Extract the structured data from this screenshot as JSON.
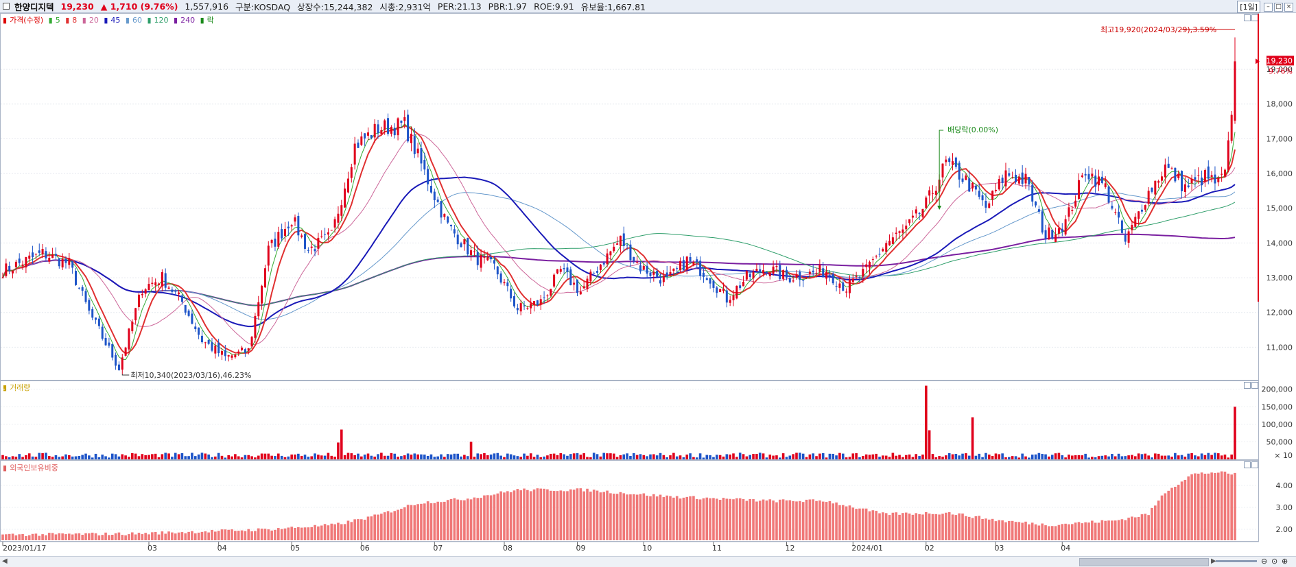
{
  "header": {
    "stock_name": "한양디지텍",
    "price": "19,230",
    "change": "▲ 1,710 (9.76%)",
    "volume": "1,557,916",
    "market": "구분:KOSDAQ",
    "shares": "상장수:15,244,382",
    "mcap": "시총:2,931억",
    "per": "PER:21.13",
    "pbr": "PBR:1.97",
    "roe": "ROE:9.91",
    "float_ratio": "유보율:1,667.81",
    "period_button": "[1일]"
  },
  "legend": {
    "price_label": "가격(수정)",
    "ma": [
      {
        "label": "5",
        "color": "#33aa33"
      },
      {
        "label": "8",
        "color": "#e03030"
      },
      {
        "label": "20",
        "color": "#cc6699"
      },
      {
        "label": "45",
        "color": "#1a1ab8"
      },
      {
        "label": "60",
        "color": "#6699cc"
      },
      {
        "label": "120",
        "color": "#2e9e6a"
      },
      {
        "label": "240",
        "color": "#7a1fa0"
      }
    ],
    "ex_label": "락",
    "volume_label": "거래량",
    "foreign_label": "외국인보유비중"
  },
  "annotations": {
    "high": "최고19,920(2024/03/29),3.59%",
    "low": "최저10,340(2023/03/16),46.23%",
    "dividend": "배당락(0.00%)",
    "last_price": "19,230",
    "last_pct": "9.76%"
  },
  "chart_data": [
    {
      "type": "candlestick",
      "title": "한양디지텍",
      "x_start": "2023/01/17",
      "x_ticks": [
        "2023/01/17",
        "03",
        "04",
        "05",
        "06",
        "07",
        "08",
        "09",
        "10",
        "11",
        "12",
        "2024/01",
        "02",
        "03",
        "04"
      ],
      "y_ticks": [
        "11,000",
        "12,000",
        "13,000",
        "14,000",
        "15,000",
        "16,000",
        "17,000",
        "18,000",
        "19,000"
      ],
      "ylim": [
        10100,
        20600
      ],
      "anchors": [
        [
          0,
          13200
        ],
        [
          12,
          13700
        ],
        [
          20,
          13400
        ],
        [
          26,
          12000
        ],
        [
          35,
          10400
        ],
        [
          42,
          12700
        ],
        [
          48,
          13000
        ],
        [
          54,
          12300
        ],
        [
          60,
          11200
        ],
        [
          67,
          10700
        ],
        [
          74,
          10900
        ],
        [
          80,
          13800
        ],
        [
          87,
          14700
        ],
        [
          92,
          13800
        ],
        [
          99,
          14200
        ],
        [
          106,
          16800
        ],
        [
          113,
          17300
        ],
        [
          121,
          17400
        ],
        [
          128,
          15800
        ],
        [
          134,
          14500
        ],
        [
          142,
          13600
        ],
        [
          148,
          13300
        ],
        [
          155,
          12100
        ],
        [
          162,
          12300
        ],
        [
          168,
          13200
        ],
        [
          174,
          12600
        ],
        [
          180,
          13400
        ],
        [
          186,
          14100
        ],
        [
          192,
          13300
        ],
        [
          200,
          12900
        ],
        [
          206,
          13500
        ],
        [
          212,
          13100
        ],
        [
          218,
          12400
        ],
        [
          224,
          13000
        ],
        [
          230,
          13300
        ],
        [
          236,
          13000
        ],
        [
          242,
          13100
        ],
        [
          248,
          13200
        ],
        [
          254,
          12700
        ],
        [
          260,
          13200
        ],
        [
          266,
          14000
        ],
        [
          272,
          14400
        ],
        [
          278,
          15100
        ],
        [
          284,
          16300
        ],
        [
          290,
          15800
        ],
        [
          296,
          15000
        ],
        [
          302,
          16000
        ],
        [
          308,
          15800
        ],
        [
          314,
          14200
        ],
        [
          320,
          14600
        ],
        [
          326,
          16100
        ],
        [
          332,
          15600
        ],
        [
          338,
          14000
        ],
        [
          344,
          15300
        ],
        [
          350,
          16200
        ],
        [
          356,
          15600
        ],
        [
          362,
          15900
        ],
        [
          366,
          15700
        ],
        [
          368,
          16000
        ],
        [
          370,
          17500
        ],
        [
          371,
          19230
        ]
      ],
      "dividend_index": 282
    },
    {
      "type": "bar",
      "title": "거래량",
      "y_ticks": [
        "200,000",
        "150,000",
        "100,000",
        "50,000"
      ],
      "y_unit": "× 10",
      "ylim": [
        0,
        215000
      ],
      "spikes": [
        [
          101,
          48000
        ],
        [
          102,
          85000
        ],
        [
          141,
          50000
        ],
        [
          278,
          210000
        ],
        [
          279,
          83000
        ],
        [
          292,
          120000
        ],
        [
          371,
          150000
        ]
      ]
    },
    {
      "type": "bar",
      "title": "외국인보유비중",
      "y_ticks": [
        "4.00",
        "3.00",
        "2.00"
      ],
      "ylim": [
        1.5,
        5.0
      ],
      "anchors": [
        [
          0,
          1.75
        ],
        [
          40,
          1.8
        ],
        [
          80,
          2.0
        ],
        [
          100,
          2.2
        ],
        [
          112,
          2.6
        ],
        [
          125,
          3.2
        ],
        [
          140,
          3.4
        ],
        [
          155,
          3.8
        ],
        [
          175,
          3.8
        ],
        [
          200,
          3.5
        ],
        [
          230,
          3.3
        ],
        [
          248,
          3.3
        ],
        [
          265,
          2.7
        ],
        [
          285,
          2.75
        ],
        [
          300,
          2.4
        ],
        [
          315,
          2.2
        ],
        [
          335,
          2.4
        ],
        [
          345,
          2.7
        ],
        [
          350,
          3.7
        ],
        [
          358,
          4.5
        ],
        [
          365,
          4.6
        ],
        [
          372,
          4.5
        ]
      ]
    }
  ]
}
